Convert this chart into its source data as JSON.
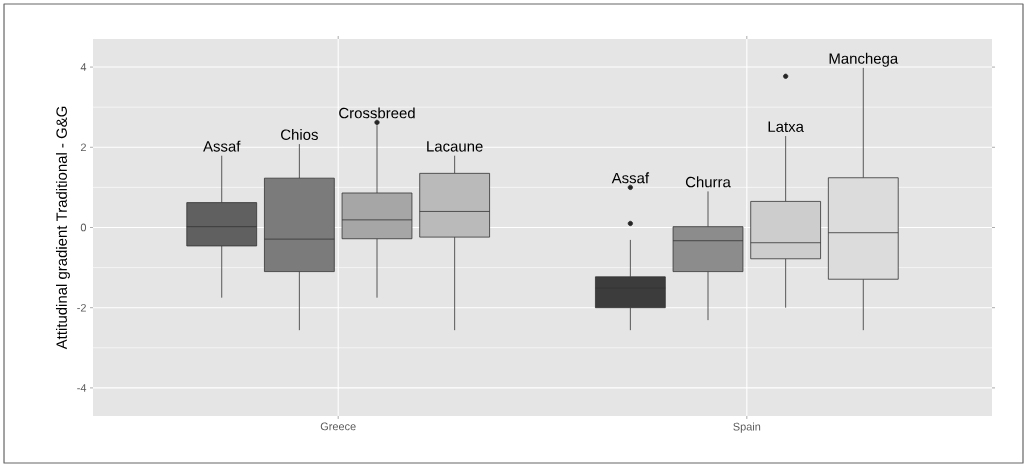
{
  "chart_data": {
    "type": "box",
    "ylabel": "Attitudinal gradient Traditional - G&G",
    "categories": [
      "Greece",
      "Spain"
    ],
    "ylim": [
      -4.7,
      4.7
    ],
    "yticks": [
      -4,
      -2,
      0,
      2,
      4
    ],
    "grid": true,
    "series": [
      {
        "colors": [
          "#606060",
          "#3c3c3c"
        ],
        "boxes": [
          {
            "low": -1.75,
            "q1": -0.46,
            "median": 0.02,
            "q3": 0.62,
            "high": 1.79
          },
          {
            "low": -2.56,
            "q1": -2.0,
            "median": -1.51,
            "q3": -1.23,
            "high": -0.31,
            "outliers": [
              1.0,
              0.1
            ]
          }
        ]
      },
      {
        "colors": [
          "#7b7b7b",
          "#8c8c8c"
        ],
        "boxes": [
          {
            "low": -2.56,
            "q1": -1.1,
            "median": -0.29,
            "q3": 1.23,
            "high": 2.08
          },
          {
            "low": -2.31,
            "q1": -1.1,
            "median": -0.33,
            "q3": 0.02,
            "high": 0.9
          }
        ]
      },
      {
        "colors": [
          "#a6a6a6",
          "#cdcdcd"
        ],
        "boxes": [
          {
            "low": -1.75,
            "q1": -0.28,
            "median": 0.19,
            "q3": 0.86,
            "high": 2.55,
            "outliers": [
              2.62
            ]
          },
          {
            "low": -2.0,
            "q1": -0.78,
            "median": -0.38,
            "q3": 0.65,
            "high": 2.28,
            "outliers": [
              3.77
            ]
          }
        ]
      },
      {
        "colors": [
          "#bababa",
          "#dcdcdc"
        ],
        "boxes": [
          {
            "low": -2.56,
            "q1": -0.24,
            "median": 0.4,
            "q3": 1.35,
            "high": 1.79
          },
          {
            "low": -2.56,
            "q1": -1.29,
            "median": -0.13,
            "q3": 1.24,
            "high": 3.98
          }
        ]
      }
    ],
    "annotations": [
      "Assaf",
      "Chios",
      "Crossbreed",
      "Lacaune",
      "Assaf",
      "Churra",
      "Latxa",
      "Manchega"
    ]
  }
}
